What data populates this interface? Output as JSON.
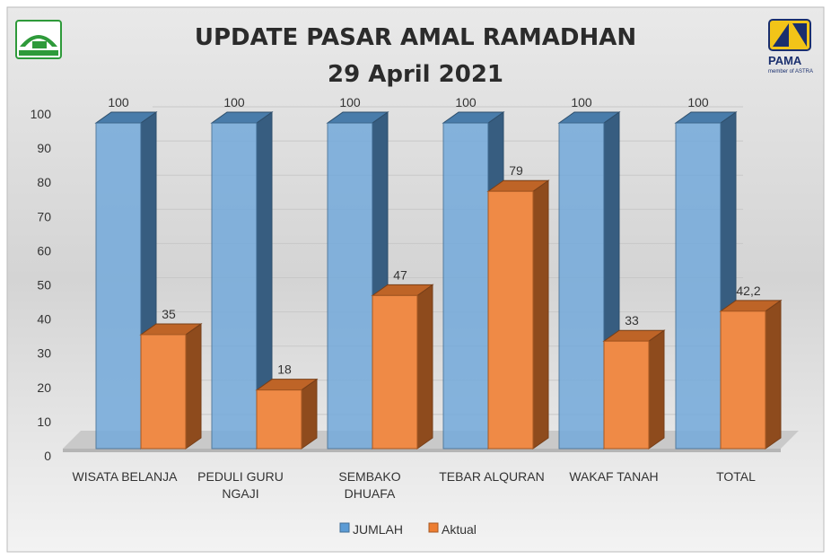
{
  "chart_data": {
    "type": "bar",
    "title": "UPDATE PASAR AMAL RAMADHAN",
    "subtitle": "29 April 2021",
    "categories": [
      [
        "WISATA BELANJA"
      ],
      [
        "PEDULI GURU",
        "NGAJI"
      ],
      [
        "SEMBAKO",
        "DHUAFA"
      ],
      [
        "TEBAR ALQURAN"
      ],
      [
        "WAKAF TANAH"
      ],
      [
        "TOTAL"
      ]
    ],
    "series": [
      {
        "name": "JUMLAH",
        "values": [
          100,
          100,
          100,
          100,
          100,
          100
        ],
        "labels": [
          "100",
          "100",
          "100",
          "100",
          "100",
          "100"
        ],
        "color": "#5b9bd5"
      },
      {
        "name": "Aktual",
        "values": [
          35,
          18,
          47,
          79,
          33,
          42.2
        ],
        "labels": [
          "35",
          "18",
          "47",
          "79",
          "33",
          "42,2"
        ],
        "color": "#ed7d31"
      }
    ],
    "yticks": [
      "0",
      "10",
      "20",
      "30",
      "40",
      "50",
      "60",
      "70",
      "80",
      "90",
      "100"
    ],
    "ylim": [
      0,
      100
    ],
    "grid": true,
    "legend": "bottom",
    "style": "3d-clustered-column"
  },
  "logos": {
    "left": "Pasar Amal Ramadhan mosque logo",
    "right": "PAMA member of ASTRA"
  }
}
